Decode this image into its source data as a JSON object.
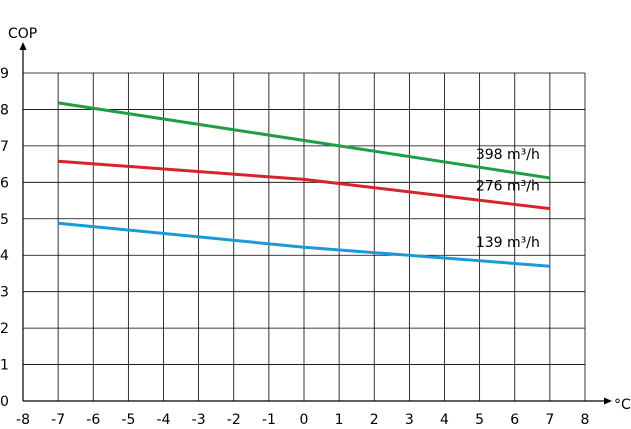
{
  "chart_data": {
    "type": "line",
    "title": "",
    "xlabel": "°C",
    "ylabel": "COP",
    "xlim": [
      -8,
      8
    ],
    "ylim": [
      0,
      9
    ],
    "x_ticks": [
      "-8",
      "-7",
      "-6",
      "-5",
      "-4",
      "-3",
      "-2",
      "-1",
      "0",
      "1",
      "2",
      "3",
      "4",
      "5",
      "6",
      "7",
      "8"
    ],
    "y_ticks": [
      "0",
      "1",
      "2",
      "3",
      "4",
      "5",
      "6",
      "7",
      "8",
      "9"
    ],
    "grid": true,
    "series": [
      {
        "name": "398 m³/h",
        "color": "#1f9e47",
        "points": [
          [
            -7,
            8.18
          ],
          [
            7,
            6.12
          ]
        ]
      },
      {
        "name": "276 m³/h",
        "color": "#d8232a",
        "points": [
          [
            -7,
            6.58
          ],
          [
            0,
            6.08
          ],
          [
            7,
            5.28
          ]
        ]
      },
      {
        "name": "139 m³/h",
        "color": "#1a9ad6",
        "points": [
          [
            -7,
            4.88
          ],
          [
            0,
            4.22
          ],
          [
            7,
            3.7
          ]
        ]
      }
    ]
  }
}
